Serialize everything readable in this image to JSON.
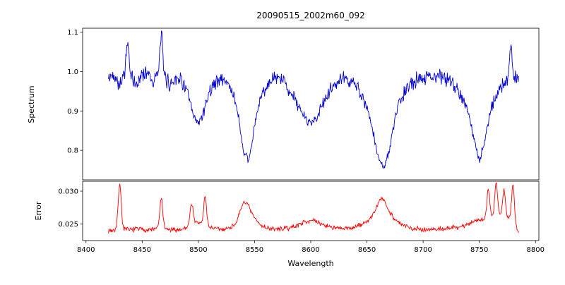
{
  "figure_title": "20090515_2002m60_092",
  "chart_data": {
    "type": "line",
    "title": "20090515_2002m60_092",
    "xlabel": "Wavelength",
    "xlim": [
      8397,
      8803
    ],
    "x_ticks": [
      8400,
      8450,
      8500,
      8550,
      8600,
      8650,
      8700,
      8750,
      8800
    ],
    "x_tick_labels": [
      "8400",
      "8450",
      "8500",
      "8550",
      "8600",
      "8650",
      "8700",
      "8750",
      "8800"
    ],
    "grid": false,
    "legend": "none",
    "panels": [
      {
        "name": "spectrum",
        "ylabel": "Spectrum",
        "line_color": "#0000cd",
        "ylim": [
          0.725,
          1.11
        ],
        "y_ticks": [
          0.8,
          0.9,
          1.0,
          1.1
        ],
        "y_tick_labels": [
          "0.8",
          "0.9",
          "1.0",
          "1.1"
        ],
        "absorption_line_centers": [
          8498,
          8542,
          8598,
          8662,
          8750
        ],
        "series": {
          "x_start": 8420,
          "x_step": 5,
          "y": [
            0.98,
            0.995,
            0.968,
            1.0,
            0.985,
            0.965,
            0.995,
            1.0,
            0.975,
            1.0,
            0.988,
            0.965,
            0.988,
            0.978,
            0.95,
            0.89,
            0.865,
            0.902,
            0.952,
            0.972,
            0.982,
            0.975,
            0.952,
            0.9,
            0.795,
            0.772,
            0.862,
            0.93,
            0.962,
            0.975,
            0.982,
            0.98,
            0.958,
            0.935,
            0.905,
            0.882,
            0.87,
            0.882,
            0.912,
            0.942,
            0.962,
            0.975,
            0.982,
            0.978,
            0.965,
            0.942,
            0.905,
            0.852,
            0.782,
            0.756,
            0.8,
            0.88,
            0.93,
            0.952,
            0.972,
            0.982,
            0.985,
            0.99,
            0.99,
            0.985,
            0.982,
            0.975,
            0.962,
            0.932,
            0.898,
            0.832,
            0.77,
            0.828,
            0.9,
            0.942,
            0.965,
            0.98,
            0.99,
            0.972
          ]
        },
        "spikes": [
          {
            "x": 8437,
            "amp": 0.075,
            "width": 1.2
          },
          {
            "x": 8467,
            "amp": 0.105,
            "width": 1.0
          },
          {
            "x": 8778,
            "amp": 0.082,
            "width": 1.0
          }
        ],
        "noise_amplitude": 0.026,
        "noise_seed": 42
      },
      {
        "name": "error",
        "ylabel": "Error",
        "line_color": "#ff0000",
        "ylim": [
          0.0225,
          0.0315
        ],
        "y_ticks": [
          0.025,
          0.03
        ],
        "y_tick_labels": [
          "0.025",
          "0.030"
        ],
        "series": {
          "x_start": 8420,
          "x_step": 5,
          "y": [
            0.024,
            0.0241,
            0.0244,
            0.0242,
            0.0241,
            0.0243,
            0.0242,
            0.0241,
            0.0242,
            0.0245,
            0.0243,
            0.0241,
            0.0241,
            0.0242,
            0.0245,
            0.0249,
            0.0252,
            0.0251,
            0.0246,
            0.0243,
            0.0242,
            0.0243,
            0.0246,
            0.0256,
            0.0272,
            0.0271,
            0.0259,
            0.0249,
            0.0245,
            0.0243,
            0.0242,
            0.0243,
            0.0244,
            0.0246,
            0.025,
            0.0254,
            0.0256,
            0.0253,
            0.025,
            0.0247,
            0.0245,
            0.0243,
            0.0243,
            0.0244,
            0.0246,
            0.0249,
            0.0254,
            0.0263,
            0.0274,
            0.0278,
            0.0269,
            0.0257,
            0.025,
            0.0246,
            0.0244,
            0.0243,
            0.0242,
            0.0242,
            0.0242,
            0.0243,
            0.0243,
            0.0244,
            0.0245,
            0.0247,
            0.025,
            0.0254,
            0.0258,
            0.0257,
            0.0261,
            0.0266,
            0.0263,
            0.026,
            0.0254,
            0.0237
          ]
        },
        "spikes": [
          {
            "x": 8430,
            "amp": 0.0068,
            "width": 1.3
          },
          {
            "x": 8467,
            "amp": 0.0046,
            "width": 1.2
          },
          {
            "x": 8494,
            "amp": 0.0032,
            "width": 1.5
          },
          {
            "x": 8506,
            "amp": 0.0042,
            "width": 1.2
          },
          {
            "x": 8541,
            "amp": 0.0012,
            "width": 3
          },
          {
            "x": 8663,
            "amp": 0.0012,
            "width": 3
          },
          {
            "x": 8758,
            "amp": 0.0045,
            "width": 1.2
          },
          {
            "x": 8765,
            "amp": 0.0048,
            "width": 1.2
          },
          {
            "x": 8772,
            "amp": 0.004,
            "width": 1.2
          },
          {
            "x": 8780,
            "amp": 0.0058,
            "width": 1.2
          }
        ],
        "noise_amplitude": 0.00045,
        "noise_seed": 7
      }
    ]
  }
}
